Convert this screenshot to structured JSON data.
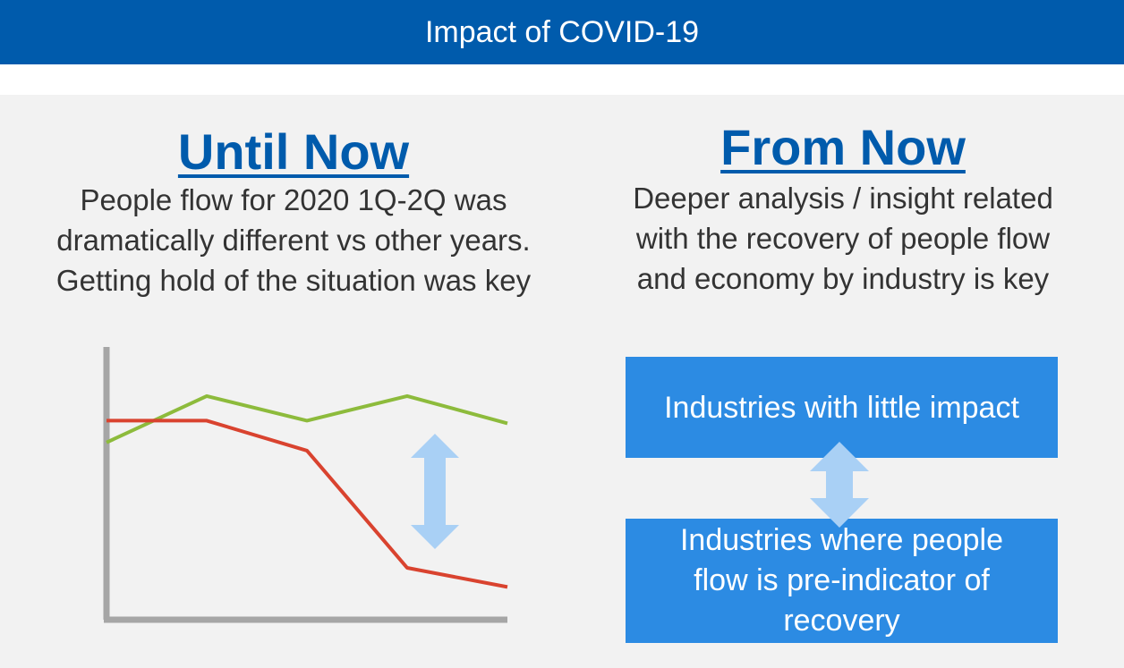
{
  "header": {
    "title": "Impact of COVID-19",
    "color": "#005bac"
  },
  "left": {
    "heading": "Until Now",
    "body": [
      "People flow for 2020 1Q-2Q was",
      "dramatically different vs other years.",
      "Getting hold of the situation was key"
    ]
  },
  "right": {
    "heading": "From Now",
    "body": [
      "Deeper analysis / insight related",
      "with the recovery of people flow",
      "and economy by industry is key"
    ],
    "box_top": "Industries with little impact",
    "box_bottom": [
      "Industries where people",
      "flow is pre-indicator of",
      "recovery"
    ]
  },
  "chart_data": {
    "type": "line",
    "x": [
      0,
      1,
      2,
      3,
      4
    ],
    "series": [
      {
        "values": [
          6.5,
          8.2,
          7.3,
          8.2,
          7.2
        ],
        "color": "#8dbb3c"
      },
      {
        "values": [
          7.3,
          7.3,
          6.2,
          1.9,
          1.2
        ],
        "color": "#d9432f"
      }
    ],
    "xlim": [
      0,
      4
    ],
    "ylim": [
      0,
      10
    ],
    "grid": false,
    "axis_color": "#a6a6a6",
    "arrow_color": "#a9d0f5"
  }
}
